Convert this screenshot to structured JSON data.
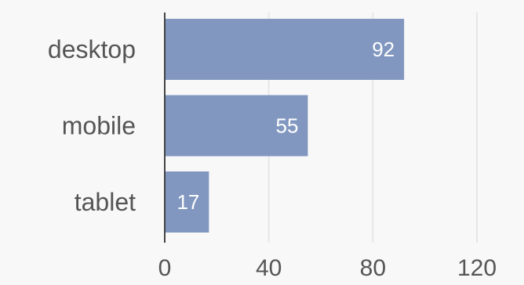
{
  "chart_data": {
    "type": "bar",
    "orientation": "horizontal",
    "categories": [
      "desktop",
      "mobile",
      "tablet"
    ],
    "values": [
      92,
      55,
      17
    ],
    "xlim": [
      0,
      120
    ],
    "xticks": [
      0,
      40,
      80,
      120
    ],
    "grid": true,
    "bar_color": "#8197c0",
    "value_label_color": "#ffffff",
    "text_color": "#555555",
    "grid_color": "#e6e6e6",
    "axis_color": "#444444",
    "background": "#f8f8f8"
  }
}
